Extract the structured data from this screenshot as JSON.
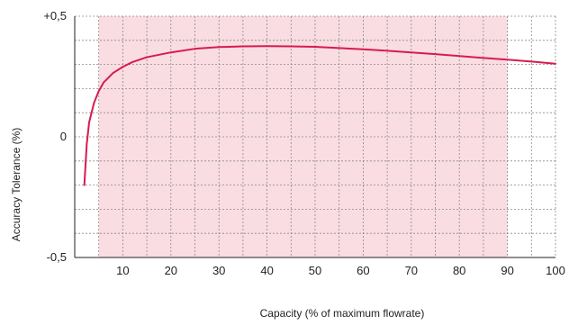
{
  "chart_data": {
    "type": "line",
    "title": "",
    "xlabel": "Capacity (% of maximum flowrate)",
    "ylabel": "Accuracy Tolerance (%)",
    "xlim": [
      0,
      100
    ],
    "ylim": [
      -0.5,
      0.5
    ],
    "x_ticks": [
      10,
      20,
      30,
      40,
      50,
      60,
      70,
      80,
      90,
      100
    ],
    "x_tick_labels": [
      "10",
      "20",
      "30",
      "40",
      "50",
      "60",
      "70",
      "80",
      "90",
      "100"
    ],
    "y_ticks": [
      -0.5,
      0,
      0.5
    ],
    "y_tick_labels": [
      "-0,5",
      "0",
      "+0,5"
    ],
    "grid": true,
    "grid_style": "dotted",
    "shaded_region": {
      "x": [
        5,
        90
      ],
      "y": [
        -0.5,
        0.5
      ],
      "color": "#f9dde3"
    },
    "series": [
      {
        "color": "#d81b4f",
        "x": [
          2,
          2.5,
          3,
          4,
          5,
          6,
          8,
          10,
          12,
          15,
          20,
          25,
          30,
          35,
          40,
          45,
          50,
          55,
          60,
          65,
          70,
          75,
          80,
          85,
          90,
          95,
          100
        ],
        "y": [
          -0.2,
          -0.03,
          0.06,
          0.14,
          0.19,
          0.225,
          0.265,
          0.29,
          0.31,
          0.33,
          0.35,
          0.365,
          0.372,
          0.375,
          0.376,
          0.375,
          0.373,
          0.368,
          0.363,
          0.357,
          0.35,
          0.343,
          0.335,
          0.327,
          0.32,
          0.312,
          0.303
        ]
      }
    ]
  }
}
